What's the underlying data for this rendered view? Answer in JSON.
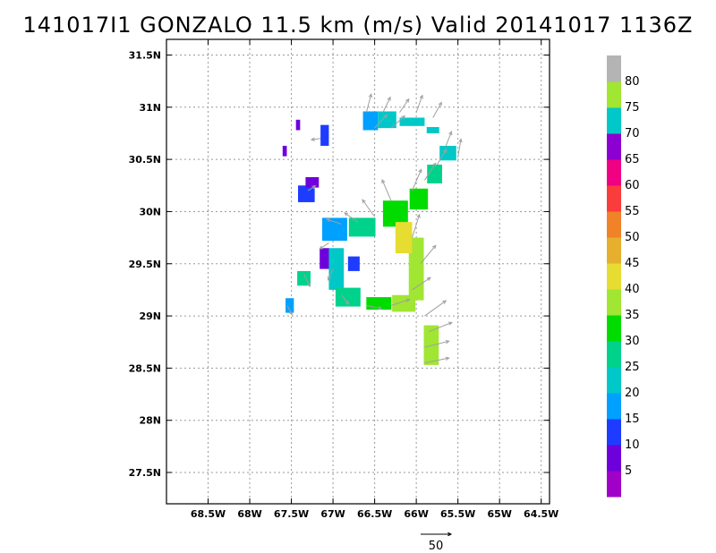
{
  "title": "141017I1 GONZALO 11.5 km (m/s) Valid 20141017 1136Z",
  "chart_data": {
    "type": "heatmap",
    "title": "141017I1 GONZALO 11.5 km (m/s) Valid 20141017 1136Z",
    "units": "m/s",
    "grid": true,
    "xlim": [
      -69.0,
      -64.4
    ],
    "ylim": [
      27.2,
      31.65
    ],
    "x_ticks": [
      -68.5,
      -68,
      -67.5,
      -67,
      -66.5,
      -66,
      -65.5,
      -65,
      -64.5
    ],
    "x_tick_labels": [
      "68.5W",
      "68W",
      "67.5W",
      "67W",
      "66.5W",
      "66W",
      "65.5W",
      "65W",
      "64.5W"
    ],
    "y_ticks": [
      27.5,
      28,
      28.5,
      29,
      29.5,
      30,
      30.5,
      31,
      31.5
    ],
    "y_tick_labels": [
      "27.5N",
      "28N",
      "28.5N",
      "29N",
      "29.5N",
      "30N",
      "30.5N",
      "31N",
      "31.5N"
    ],
    "colorbar": {
      "labels": [
        "5",
        "10",
        "15",
        "20",
        "25",
        "30",
        "35",
        "40",
        "45",
        "50",
        "55",
        "60",
        "65",
        "70",
        "75",
        "80"
      ],
      "colors": [
        "#a000c8",
        "#6e00dc",
        "#1e3cff",
        "#00a0ff",
        "#00c8c8",
        "#00d28c",
        "#00dc00",
        "#a0e632",
        "#e6dc32",
        "#e6af2d",
        "#f08228",
        "#fa3c3c",
        "#f00082",
        "#8c00d2",
        "#00c8c8",
        "#a0e632",
        "#b4b4b4"
      ]
    },
    "reference_vector": {
      "label": "50",
      "value": 50
    },
    "patches": [
      {
        "lon": -66.55,
        "lat": 30.87,
        "w": 0.18,
        "h": 0.18,
        "value": 15
      },
      {
        "lon": -66.35,
        "lat": 30.88,
        "w": 0.22,
        "h": 0.16,
        "value": 23
      },
      {
        "lon": -66.05,
        "lat": 30.86,
        "w": 0.3,
        "h": 0.08,
        "value": 22
      },
      {
        "lon": -65.8,
        "lat": 30.78,
        "w": 0.15,
        "h": 0.06,
        "value": 20
      },
      {
        "lon": -65.62,
        "lat": 30.56,
        "w": 0.2,
        "h": 0.14,
        "value": 24
      },
      {
        "lon": -65.78,
        "lat": 30.36,
        "w": 0.18,
        "h": 0.18,
        "value": 28
      },
      {
        "lon": -65.97,
        "lat": 30.12,
        "w": 0.22,
        "h": 0.2,
        "value": 31
      },
      {
        "lon": -66.25,
        "lat": 29.98,
        "w": 0.3,
        "h": 0.25,
        "value": 33
      },
      {
        "lon": -66.65,
        "lat": 29.85,
        "w": 0.32,
        "h": 0.18,
        "value": 26
      },
      {
        "lon": -66.98,
        "lat": 29.83,
        "w": 0.3,
        "h": 0.22,
        "value": 18
      },
      {
        "lon": -67.1,
        "lat": 29.55,
        "w": 0.12,
        "h": 0.2,
        "value": 9
      },
      {
        "lon": -66.96,
        "lat": 29.45,
        "w": 0.18,
        "h": 0.4,
        "value": 20
      },
      {
        "lon": -66.75,
        "lat": 29.5,
        "w": 0.14,
        "h": 0.14,
        "value": 12
      },
      {
        "lon": -66.82,
        "lat": 29.18,
        "w": 0.3,
        "h": 0.18,
        "value": 25
      },
      {
        "lon": -66.45,
        "lat": 29.12,
        "w": 0.3,
        "h": 0.12,
        "value": 31
      },
      {
        "lon": -66.15,
        "lat": 29.12,
        "w": 0.28,
        "h": 0.16,
        "value": 36
      },
      {
        "lon": -66.0,
        "lat": 29.45,
        "w": 0.18,
        "h": 0.6,
        "value": 38
      },
      {
        "lon": -66.15,
        "lat": 29.75,
        "w": 0.2,
        "h": 0.3,
        "value": 42
      },
      {
        "lon": -65.82,
        "lat": 28.72,
        "w": 0.18,
        "h": 0.38,
        "value": 36
      },
      {
        "lon": -67.32,
        "lat": 30.17,
        "w": 0.2,
        "h": 0.16,
        "value": 11
      },
      {
        "lon": -67.25,
        "lat": 30.28,
        "w": 0.16,
        "h": 0.1,
        "value": 7
      },
      {
        "lon": -67.1,
        "lat": 30.73,
        "w": 0.1,
        "h": 0.2,
        "value": 11
      },
      {
        "lon": -67.42,
        "lat": 30.83,
        "w": 0.05,
        "h": 0.1,
        "value": 6
      },
      {
        "lon": -67.58,
        "lat": 30.58,
        "w": 0.05,
        "h": 0.1,
        "value": 6
      },
      {
        "lon": -67.35,
        "lat": 29.36,
        "w": 0.16,
        "h": 0.14,
        "value": 25
      },
      {
        "lon": -67.52,
        "lat": 29.1,
        "w": 0.1,
        "h": 0.14,
        "value": 18
      }
    ],
    "vectors": [
      {
        "lon": -66.6,
        "lat": 30.95,
        "u": 8,
        "v": 30
      },
      {
        "lon": -66.4,
        "lat": 30.95,
        "u": 12,
        "v": 25
      },
      {
        "lon": -66.2,
        "lat": 30.95,
        "u": 15,
        "v": 22
      },
      {
        "lon": -66.0,
        "lat": 30.95,
        "u": 10,
        "v": 28
      },
      {
        "lon": -65.8,
        "lat": 30.9,
        "u": 14,
        "v": 25
      },
      {
        "lon": -66.5,
        "lat": 30.8,
        "u": 20,
        "v": 22
      },
      {
        "lon": -66.3,
        "lat": 30.8,
        "u": 22,
        "v": 20
      },
      {
        "lon": -65.65,
        "lat": 30.62,
        "u": 10,
        "v": 25
      },
      {
        "lon": -65.5,
        "lat": 30.52,
        "u": 5,
        "v": 30
      },
      {
        "lon": -65.75,
        "lat": 30.45,
        "u": 15,
        "v": 25
      },
      {
        "lon": -65.9,
        "lat": 30.3,
        "u": 18,
        "v": 28
      },
      {
        "lon": -66.05,
        "lat": 30.2,
        "u": 15,
        "v": 35
      },
      {
        "lon": -66.3,
        "lat": 30.1,
        "u": -15,
        "v": 35
      },
      {
        "lon": -66.5,
        "lat": 29.95,
        "u": -20,
        "v": 28
      },
      {
        "lon": -66.7,
        "lat": 29.9,
        "u": -22,
        "v": 15
      },
      {
        "lon": -66.9,
        "lat": 29.88,
        "u": -24,
        "v": 8
      },
      {
        "lon": -67.05,
        "lat": 29.7,
        "u": -15,
        "v": -10
      },
      {
        "lon": -67.0,
        "lat": 29.45,
        "u": -8,
        "v": -18
      },
      {
        "lon": -66.9,
        "lat": 29.2,
        "u": 12,
        "v": -15
      },
      {
        "lon": -66.6,
        "lat": 29.1,
        "u": 25,
        "v": -5
      },
      {
        "lon": -66.3,
        "lat": 29.1,
        "u": 30,
        "v": 10
      },
      {
        "lon": -66.05,
        "lat": 29.25,
        "u": 30,
        "v": 20
      },
      {
        "lon": -65.95,
        "lat": 29.5,
        "u": 25,
        "v": 30
      },
      {
        "lon": -66.05,
        "lat": 29.75,
        "u": 12,
        "v": 38
      },
      {
        "lon": -65.9,
        "lat": 29.0,
        "u": 35,
        "v": 25
      },
      {
        "lon": -65.85,
        "lat": 28.85,
        "u": 38,
        "v": 15
      },
      {
        "lon": -65.9,
        "lat": 28.7,
        "u": 40,
        "v": 10
      },
      {
        "lon": -65.9,
        "lat": 28.55,
        "u": 40,
        "v": 8
      },
      {
        "lon": -67.3,
        "lat": 30.2,
        "u": 12,
        "v": 8
      },
      {
        "lon": -67.15,
        "lat": 30.7,
        "u": -15,
        "v": -2
      },
      {
        "lon": -67.35,
        "lat": 29.4,
        "u": 10,
        "v": -20
      },
      {
        "lon": -67.55,
        "lat": 29.1,
        "u": 8,
        "v": -15
      }
    ]
  }
}
